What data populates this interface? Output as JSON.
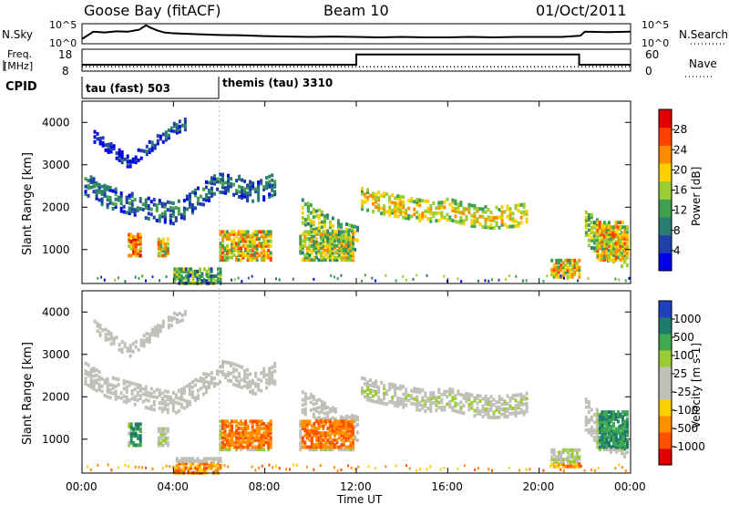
{
  "header": {
    "station": "Goose Bay (fitACF)",
    "beam": "Beam 10",
    "date": "01/Oct/2011"
  },
  "chart_data": [
    {
      "type": "line",
      "name": "noise-panel",
      "left_label": "N.Sky",
      "right_label": "N.Search",
      "left_ticks": [
        "10^5",
        "10^0"
      ],
      "right_ticks": [
        "10^5",
        "10^0"
      ],
      "y_log10_range": [
        0,
        5
      ],
      "series": [
        {
          "name": "N.Sky",
          "x_hours": [
            0,
            0.5,
            1,
            1.5,
            2,
            2.5,
            2.8,
            3,
            3.3,
            3.6,
            4,
            5,
            6,
            7,
            8,
            9,
            10,
            11,
            12,
            13,
            14,
            15,
            16,
            17,
            18,
            19,
            20,
            21,
            21.8,
            22,
            23,
            24
          ],
          "log10_values": [
            1.2,
            3.0,
            2.8,
            3.1,
            3.0,
            3.5,
            4.6,
            4.0,
            3.3,
            2.8,
            2.6,
            2.4,
            2.2,
            2.1,
            1.9,
            1.8,
            1.7,
            1.8,
            1.7,
            1.6,
            1.7,
            1.6,
            1.6,
            1.7,
            1.6,
            1.7,
            1.7,
            1.7,
            2.0,
            3.0,
            2.9,
            3.0
          ]
        }
      ]
    },
    {
      "type": "line",
      "name": "frequency-panel",
      "left_label_line1": "Freq.",
      "left_label_line2": "[MHz]",
      "right_label": "Nave",
      "left_ticks": [
        "18",
        "8"
      ],
      "right_ticks": [
        "60",
        "0"
      ],
      "freq_range_mhz": [
        8,
        18
      ],
      "nave_range": [
        0,
        60
      ],
      "series": [
        {
          "name": "Freq.",
          "x_hours": [
            0,
            12,
            12,
            21.75,
            21.75,
            24
          ],
          "values": [
            10.9,
            10.9,
            15.6,
            15.6,
            10.9,
            10.9
          ]
        },
        {
          "name": "Nave",
          "x_hours": [
            0,
            24
          ],
          "values": [
            12,
            12
          ]
        }
      ]
    },
    {
      "type": "bar",
      "name": "cpid-panel",
      "label": "CPID",
      "segments": [
        {
          "start_hour": 0,
          "text": "tau (fast) 503"
        },
        {
          "start_hour": 6.0,
          "text": "themis (tau) 3310"
        }
      ]
    },
    {
      "type": "heatmap",
      "name": "power-panel",
      "ylabel": "Slant Range [km]",
      "yticks": [
        "4000",
        "3000",
        "2000",
        "1000"
      ],
      "ylim_km": [
        200,
        4500
      ],
      "colorbar_label": "Power [dB]",
      "colorbar_ticks": [
        "28",
        "24",
        "20",
        "16",
        "12",
        "8",
        "4"
      ],
      "colorbar_colors": [
        "#0000e8",
        "#2040a8",
        "#2b7d6f",
        "#40a050",
        "#9acd32",
        "#ffd000",
        "#ff8c00",
        "#ff4000",
        "#e00000"
      ],
      "echo_bands": [
        {
          "x_hours": [
            0.1,
            1.0,
            2.0,
            3.0,
            4.0,
            4.5,
            5.0,
            5.5,
            6.0,
            6.5,
            7.0,
            7.5,
            8.0,
            8.4
          ],
          "center_km": [
            2600,
            2300,
            2150,
            2000,
            1900,
            2050,
            2250,
            2450,
            2650,
            2600,
            2500,
            2350,
            2500,
            2600
          ],
          "width_km": 250,
          "level": 2
        },
        {
          "x_hours": [
            12.2,
            13,
            14,
            15,
            16,
            17,
            18,
            19,
            19.5
          ],
          "center_km": [
            2250,
            2150,
            2050,
            1950,
            2000,
            1850,
            1800,
            1850,
            1900
          ],
          "width_km": 250,
          "level": 5
        },
        {
          "x_hours": [
            9.6,
            10.2,
            10.8,
            11.4,
            12.0
          ],
          "center_km": [
            1950,
            1750,
            1550,
            1400,
            1300
          ],
          "width_km": 280,
          "level": 4
        },
        {
          "x_hours": [
            22.0,
            22.6,
            23.2,
            23.9
          ],
          "center_km": [
            1600,
            1300,
            1100,
            1000
          ],
          "width_km": 400,
          "level": 4
        },
        {
          "x_hours": [
            0.5,
            1.0,
            1.5,
            2.0,
            2.5,
            3.0,
            3.5,
            4.0,
            4.5
          ],
          "center_km": [
            3700,
            3500,
            3300,
            3100,
            3300,
            3500,
            3700,
            3900,
            4000
          ],
          "width_km": 120,
          "level": 1
        }
      ],
      "echo_blocks": [
        {
          "x_range_hours": [
            2.0,
            2.6
          ],
          "km_range": [
            900,
            1400
          ],
          "level": 6
        },
        {
          "x_range_hours": [
            3.3,
            3.7
          ],
          "km_range": [
            900,
            1300
          ],
          "level": 5
        },
        {
          "x_range_hours": [
            6.0,
            8.2
          ],
          "km_range": [
            800,
            1500
          ],
          "level": 5
        },
        {
          "x_range_hours": [
            9.5,
            11.8
          ],
          "km_range": [
            800,
            1500
          ],
          "level": 4
        },
        {
          "x_range_hours": [
            22.5,
            23.9
          ],
          "km_range": [
            800,
            1700
          ],
          "level": 5
        },
        {
          "x_range_hours": [
            4.0,
            6.0
          ],
          "km_range": [
            250,
            600
          ],
          "level": 3
        },
        {
          "x_range_hours": [
            20.5,
            21.8
          ],
          "km_range": [
            400,
            800
          ],
          "level": 5
        }
      ]
    },
    {
      "type": "heatmap",
      "name": "velocity-panel",
      "ylabel": "Slant Range [km]",
      "yticks": [
        "4000",
        "3000",
        "2000",
        "1000"
      ],
      "ylim_km": [
        200,
        4500
      ],
      "colorbar_label": "Velocity [m s-1]",
      "colorbar_ticks": [
        "1000",
        "500",
        "100",
        "25",
        "-25",
        "-100",
        "-500",
        "-1000"
      ],
      "colorbar_colors": [
        "#2040c0",
        "#1e7a6a",
        "#40a850",
        "#9acd32",
        "#c0c0b8",
        "#c0c0b8",
        "#ffd000",
        "#ff9000",
        "#ff5000",
        "#e00000"
      ],
      "xlabel": "Time UT",
      "xticks": [
        "00:00",
        "04:00",
        "08:00",
        "12:00",
        "16:00",
        "20:00",
        "00:00"
      ],
      "x_range_hours": [
        0,
        24
      ]
    }
  ]
}
